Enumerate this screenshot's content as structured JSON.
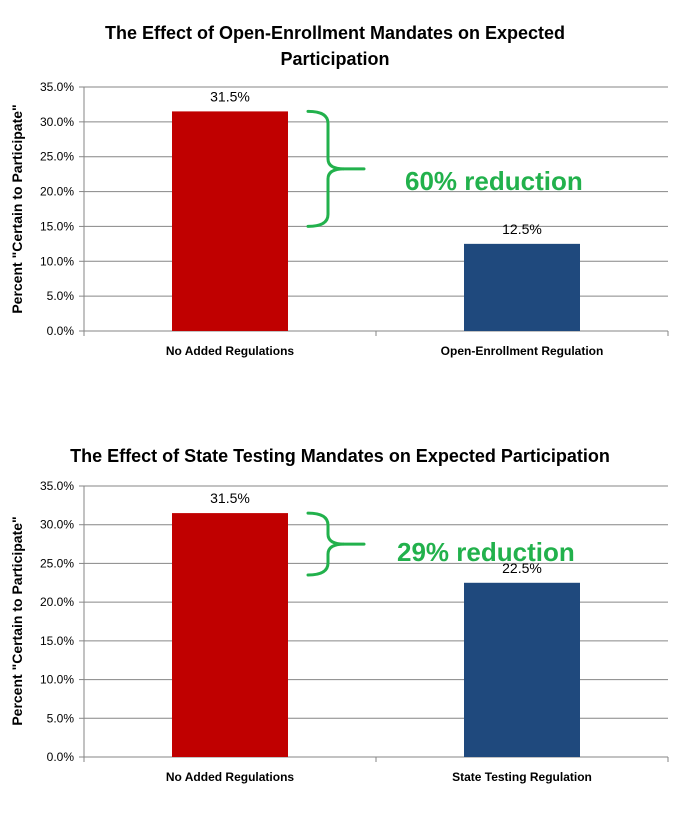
{
  "colors": {
    "bar_red": "#c00000",
    "bar_blue": "#1f497d",
    "annotation_green": "#22b14c",
    "grid": "#868686"
  },
  "chart_data": [
    {
      "type": "bar",
      "title": "The Effect of Open-Enrollment Mandates on Expected Participation",
      "ylabel": "Percent \"Certain to Participate\"",
      "xlabel": "",
      "categories": [
        "No Added Regulations",
        "Open-Enrollment Regulation"
      ],
      "values": [
        31.5,
        12.5
      ],
      "data_labels": [
        "31.5%",
        "12.5%"
      ],
      "yticks": [
        "0.0%",
        "5.0%",
        "10.0%",
        "15.0%",
        "20.0%",
        "25.0%",
        "30.0%",
        "35.0%"
      ],
      "ylim": [
        0,
        35
      ],
      "grid": true,
      "annotation": {
        "text": "60% reduction",
        "from": 31.5,
        "to": 15.0
      }
    },
    {
      "type": "bar",
      "title": "The Effect of State Testing Mandates on Expected Participation",
      "ylabel": "Percent \"Certain to Participate\"",
      "xlabel": "",
      "categories": [
        "No Added Regulations",
        "State Testing Regulation"
      ],
      "values": [
        31.5,
        22.5
      ],
      "data_labels": [
        "31.5%",
        "22.5%"
      ],
      "yticks": [
        "0.0%",
        "5.0%",
        "10.0%",
        "15.0%",
        "20.0%",
        "25.0%",
        "30.0%",
        "35.0%"
      ],
      "ylim": [
        0,
        35
      ],
      "grid": true,
      "annotation": {
        "text": "29% reduction",
        "from": 31.5,
        "to": 23.5
      }
    }
  ]
}
